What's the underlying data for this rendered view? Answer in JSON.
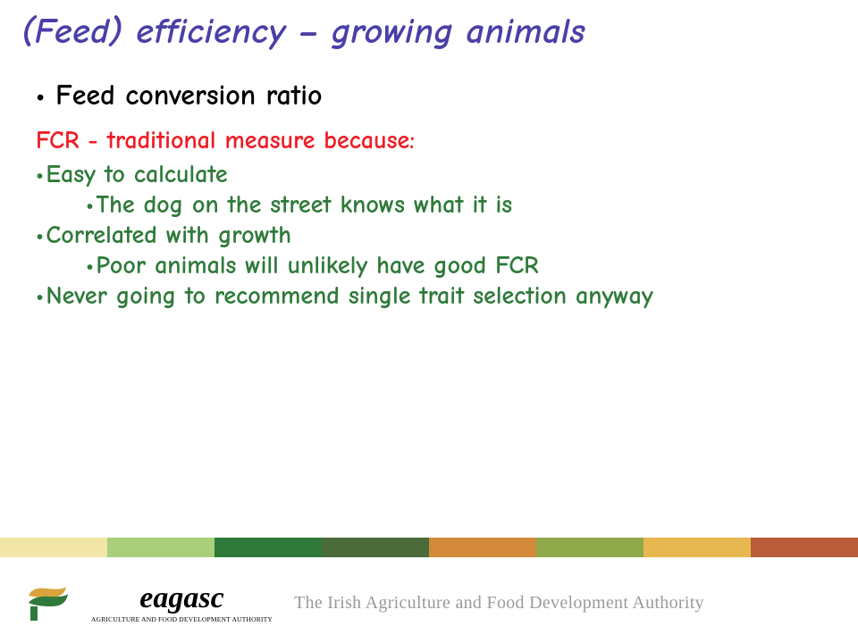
{
  "title": {
    "text": "(Feed) efficiency – growing animals",
    "color": "#4b3fa7"
  },
  "mainBullet": "Feed conversion ratio",
  "subHeading": {
    "text": "FCR - traditional measure because:",
    "color": "#ee1c25"
  },
  "points": {
    "color": "#2f7a3a",
    "items": [
      {
        "level": 1,
        "text": "Easy to calculate"
      },
      {
        "level": 2,
        "text": "The dog on the street knows what it is"
      },
      {
        "level": 1,
        "text": "Correlated with growth"
      },
      {
        "level": 2,
        "text": "Poor animals will unlikely have good FCR"
      },
      {
        "level": 1,
        "text": "Never going to recommend single trait selection anyway"
      }
    ]
  },
  "stripeColors": [
    "#f2e6a6",
    "#a9cf7a",
    "#2f7a3a",
    "#4b6b3a",
    "#d28a3a",
    "#8fa84a",
    "#e6b84f",
    "#b85c3a"
  ],
  "footer": {
    "logoText": "eagasc",
    "logoSub": "AGRICULTURE AND FOOD DEVELOPMENT AUTHORITY",
    "tagline": "The Irish Agriculture and Food Development Authority",
    "logoGreen": "#2f7a3a",
    "logoGold": "#d9a43b"
  }
}
